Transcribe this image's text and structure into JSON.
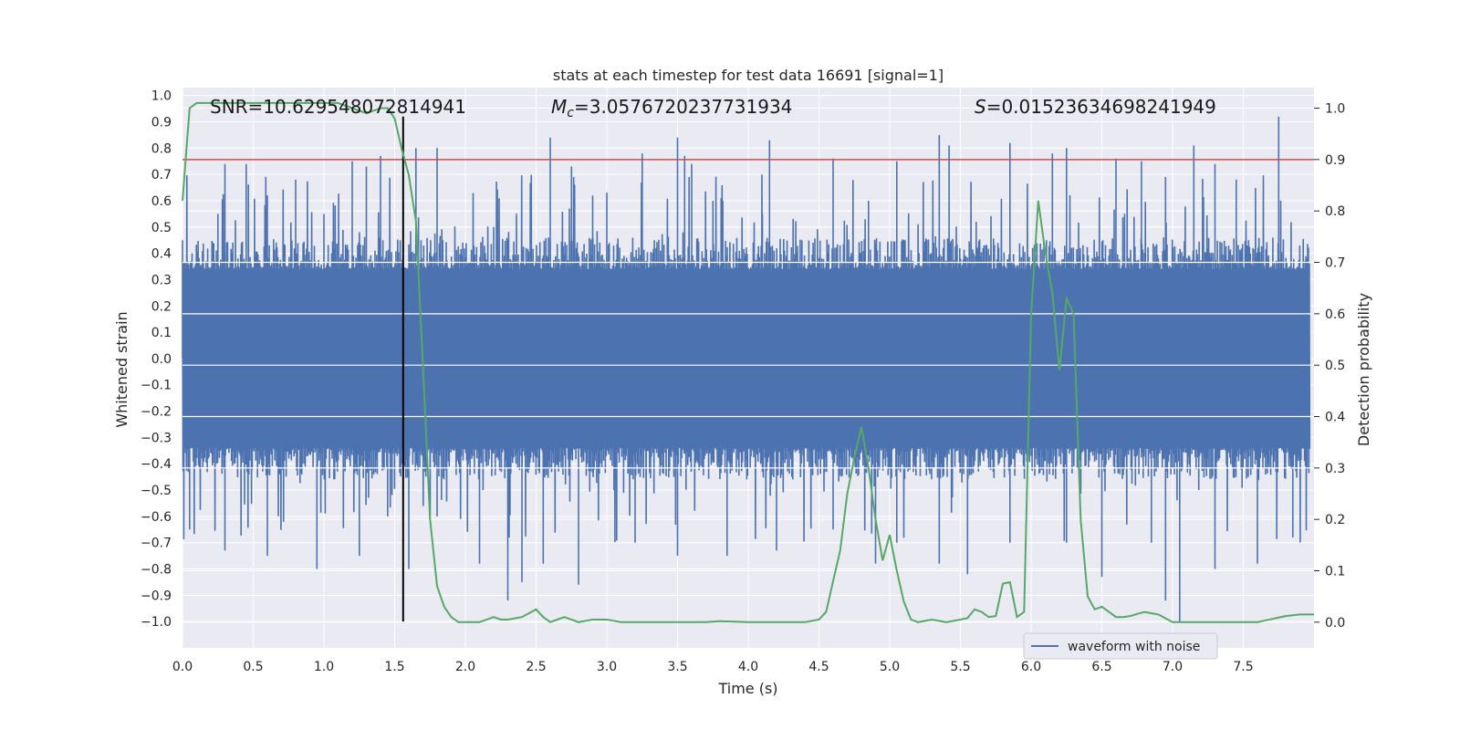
{
  "chart_data": {
    "type": "line",
    "title": "stats at each timestep for test data 16691 [signal=1]",
    "xlabel": "Time (s)",
    "ylabel_left": "Whitened strain",
    "ylabel_right": "Detection probability",
    "xlim": [
      0.0,
      8.0
    ],
    "ylim_left": [
      -1.1,
      1.03
    ],
    "ylim_right": [
      -0.05,
      1.04
    ],
    "x_ticks": [
      "0.0",
      "0.5",
      "1.0",
      "1.5",
      "2.0",
      "2.5",
      "3.0",
      "3.5",
      "4.0",
      "4.5",
      "5.0",
      "5.5",
      "6.0",
      "6.5",
      "7.0",
      "7.5"
    ],
    "y_left_ticks": [
      "1.0",
      "0.9",
      "0.8",
      "0.7",
      "0.6",
      "0.5",
      "0.4",
      "0.3",
      "0.2",
      "0.1",
      "0.0",
      "−0.1",
      "−0.2",
      "−0.3",
      "−0.4",
      "−0.5",
      "−0.6",
      "−0.7",
      "−0.8",
      "−0.9",
      "−1.0"
    ],
    "y_right_ticks": [
      "0.0",
      "0.1",
      "0.2",
      "0.3",
      "0.4",
      "0.5",
      "0.6",
      "0.7",
      "0.8",
      "0.9",
      "1.0"
    ],
    "grid": true,
    "legend": {
      "position": "lower-right",
      "entries": [
        {
          "label": "waveform with noise",
          "color": "#4c72b0"
        }
      ]
    },
    "annotations": {
      "snr_text": "SNR=10.629548072814941",
      "mc_symbol": "M",
      "mc_sub": "c",
      "mc_value": "=3.0576720237731934",
      "s_symbol": "S",
      "s_value": "=0.01523634698241949"
    },
    "marker_time": 1.56,
    "threshold_probability": 0.9,
    "series": [
      {
        "name": "waveform with noise",
        "color": "#4c72b0",
        "axis": "left",
        "description_of_envelope": "noise band spanning about ±0.35 with spikes up to ±0.95",
        "peaks_top": [
          [
            0.0,
            0.45
          ],
          [
            0.25,
            0.55
          ],
          [
            0.3,
            0.74
          ],
          [
            0.45,
            0.74
          ],
          [
            0.6,
            0.62
          ],
          [
            0.8,
            0.68
          ],
          [
            1.0,
            0.55
          ],
          [
            1.2,
            0.75
          ],
          [
            1.3,
            0.73
          ],
          [
            1.4,
            0.77
          ],
          [
            1.65,
            0.8
          ],
          [
            1.8,
            0.8
          ],
          [
            2.2,
            0.5
          ],
          [
            2.6,
            0.84
          ],
          [
            2.75,
            0.73
          ],
          [
            2.9,
            0.62
          ],
          [
            3.0,
            0.63
          ],
          [
            3.25,
            0.78
          ],
          [
            3.5,
            0.84
          ],
          [
            3.55,
            0.77
          ],
          [
            3.6,
            0.74
          ],
          [
            3.75,
            0.6
          ],
          [
            3.82,
            0.6
          ],
          [
            4.1,
            0.55
          ],
          [
            4.15,
            0.83
          ],
          [
            4.6,
            0.76
          ],
          [
            4.85,
            0.6
          ],
          [
            5.05,
            0.75
          ],
          [
            5.35,
            0.85
          ],
          [
            5.42,
            0.81
          ],
          [
            5.85,
            0.82
          ],
          [
            6.15,
            0.78
          ],
          [
            6.25,
            0.8
          ],
          [
            6.6,
            0.76
          ],
          [
            6.78,
            0.75
          ],
          [
            6.95,
            0.69
          ],
          [
            7.15,
            0.81
          ],
          [
            7.3,
            0.74
          ],
          [
            7.45,
            0.68
          ],
          [
            7.75,
            0.92
          ]
        ],
        "peaks_bottom": [
          [
            0.05,
            -0.65
          ],
          [
            0.3,
            -0.73
          ],
          [
            0.6,
            -0.75
          ],
          [
            0.95,
            -0.8
          ],
          [
            1.25,
            -0.75
          ],
          [
            1.45,
            -0.6
          ],
          [
            1.6,
            -0.8
          ],
          [
            1.8,
            -0.6
          ],
          [
            2.1,
            -0.78
          ],
          [
            2.3,
            -0.92
          ],
          [
            2.4,
            -0.85
          ],
          [
            2.55,
            -0.78
          ],
          [
            2.8,
            -0.86
          ],
          [
            3.2,
            -0.7
          ],
          [
            3.5,
            -0.75
          ],
          [
            3.85,
            -0.75
          ],
          [
            4.2,
            -0.73
          ],
          [
            4.6,
            -0.65
          ],
          [
            4.9,
            -0.78
          ],
          [
            5.05,
            -0.7
          ],
          [
            5.35,
            -0.78
          ],
          [
            5.55,
            -0.82
          ],
          [
            5.85,
            -0.7
          ],
          [
            6.25,
            -0.7
          ],
          [
            6.5,
            -0.83
          ],
          [
            6.85,
            -0.7
          ],
          [
            6.95,
            -0.92
          ],
          [
            7.05,
            -1.0
          ],
          [
            7.3,
            -0.8
          ],
          [
            7.6,
            -0.78
          ],
          [
            7.85,
            -0.68
          ]
        ]
      },
      {
        "name": "",
        "color": "#55a868",
        "axis": "right",
        "x": [
          0.0,
          0.05,
          0.1,
          0.2,
          0.3,
          0.5,
          0.7,
          0.9,
          1.0,
          1.1,
          1.2,
          1.3,
          1.4,
          1.45,
          1.5,
          1.55,
          1.6,
          1.65,
          1.7,
          1.75,
          1.8,
          1.85,
          1.9,
          1.95,
          2.0,
          2.1,
          2.2,
          2.25,
          2.3,
          2.4,
          2.5,
          2.55,
          2.6,
          2.65,
          2.7,
          2.8,
          2.9,
          3.0,
          3.1,
          3.3,
          3.5,
          3.7,
          3.8,
          4.0,
          4.2,
          4.4,
          4.5,
          4.55,
          4.6,
          4.65,
          4.7,
          4.75,
          4.8,
          4.85,
          4.9,
          4.95,
          5.0,
          5.05,
          5.1,
          5.15,
          5.2,
          5.3,
          5.4,
          5.5,
          5.55,
          5.6,
          5.65,
          5.7,
          5.75,
          5.8,
          5.85,
          5.9,
          5.95,
          6.0,
          6.05,
          6.1,
          6.15,
          6.2,
          6.25,
          6.3,
          6.35,
          6.4,
          6.45,
          6.5,
          6.55,
          6.6,
          6.65,
          6.7,
          6.8,
          6.9,
          7.0,
          7.05,
          7.1,
          7.15,
          7.2,
          7.4,
          7.6,
          7.8,
          7.9,
          8.0
        ],
        "y": [
          0.82,
          1.0,
          1.01,
          1.01,
          1.01,
          1.01,
          1.01,
          1.01,
          1.01,
          1.01,
          1.0,
          0.99,
          1.0,
          1.0,
          0.98,
          0.92,
          0.87,
          0.78,
          0.5,
          0.2,
          0.07,
          0.03,
          0.01,
          0.0,
          0.0,
          0.0,
          0.01,
          0.005,
          0.005,
          0.01,
          0.025,
          0.01,
          0.0,
          0.005,
          0.01,
          0.0,
          0.005,
          0.005,
          0.0,
          0.0,
          0.0,
          0.0,
          0.002,
          0.0,
          0.0,
          0.0,
          0.005,
          0.02,
          0.08,
          0.14,
          0.25,
          0.32,
          0.38,
          0.3,
          0.2,
          0.12,
          0.17,
          0.1,
          0.04,
          0.005,
          0.0,
          0.005,
          0.0,
          0.005,
          0.008,
          0.025,
          0.02,
          0.01,
          0.012,
          0.075,
          0.078,
          0.01,
          0.02,
          0.6,
          0.82,
          0.72,
          0.64,
          0.49,
          0.63,
          0.6,
          0.2,
          0.05,
          0.025,
          0.03,
          0.02,
          0.01,
          0.01,
          0.012,
          0.02,
          0.015,
          0.0,
          0.0,
          0.0,
          0.0,
          0.0,
          0.0,
          0.0,
          0.012,
          0.015,
          0.015
        ]
      }
    ]
  }
}
